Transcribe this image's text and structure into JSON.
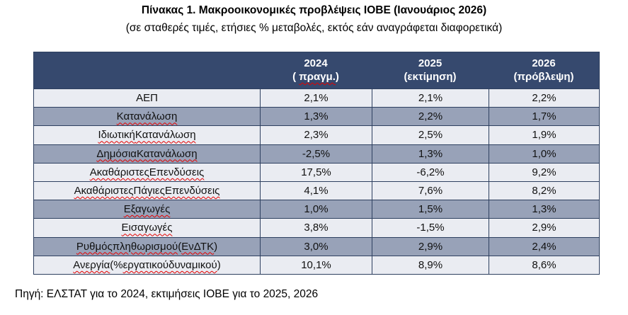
{
  "title": "Πίνακας 1. Μακροοικονομικές προβλέψεις ΙΟΒΕ (Ιανουάριος 2026)",
  "subtitle": "(σε σταθερές τιμές, ετήσιες % μεταβολές, εκτός εάν αναγράφεται διαφορετικά)",
  "source": "Πηγή: ΕΛΣΤΑΤ για το 2024, εκτιμήσεις ΙΟΒΕ για το 2025, 2026",
  "colors": {
    "header_bg": "#36496E",
    "row_light": "#EAECF2",
    "row_shaded": "#98A2B8",
    "border": "#2E4060",
    "spellcheck_underline": "#E50000",
    "header_text": "#FFFFFF"
  },
  "table": {
    "columns": [
      {
        "year": "2024",
        "sublabel": "( πραγμ.)",
        "sublabel_segments": [
          {
            "t": "( ",
            "sp": false
          },
          {
            "t": "πραγμ.",
            "sp": true
          },
          {
            "t": ")",
            "sp": false
          }
        ]
      },
      {
        "year": "2025",
        "sublabel": "(εκτίμηση)",
        "sublabel_segments": [
          {
            "t": "(εκτίμηση)",
            "sp": false
          }
        ]
      },
      {
        "year": "2026",
        "sublabel": "(πρόβλεψη)",
        "sublabel_segments": [
          {
            "t": "(πρόβλεψη)",
            "sp": false
          }
        ]
      }
    ],
    "rows": [
      {
        "label": "ΑΕΠ",
        "shaded": false,
        "values": [
          "2,1%",
          "2,1%",
          "2,2%"
        ],
        "label_segments": [
          {
            "t": "ΑΕΠ",
            "sp": false
          }
        ]
      },
      {
        "label": "Κατανάλωση",
        "shaded": true,
        "values": [
          "1,3%",
          "2,2%",
          "1,7%"
        ],
        "label_segments": [
          {
            "t": "Κατανάλωση",
            "sp": true
          }
        ]
      },
      {
        "label": "Ιδιωτική Κατανάλωση",
        "shaded": false,
        "values": [
          "2,3%",
          "2,5%",
          "1,9%"
        ],
        "label_segments": [
          {
            "t": "Ιδιωτική",
            "sp": true
          },
          {
            "t": " ",
            "sp": false
          },
          {
            "t": "Κατανάλωση",
            "sp": true
          }
        ]
      },
      {
        "label": "Δημόσια Κατανάλωση",
        "shaded": true,
        "values": [
          "-2,5%",
          "1,3%",
          "1,0%"
        ],
        "label_segments": [
          {
            "t": "Δημόσια",
            "sp": true
          },
          {
            "t": " ",
            "sp": false
          },
          {
            "t": "Κατανάλωση",
            "sp": true
          }
        ]
      },
      {
        "label": "Ακαθάριστες Επενδύσεις",
        "shaded": false,
        "values": [
          "17,5%",
          "-6,2%",
          "9,2%"
        ],
        "label_segments": [
          {
            "t": "Ακαθάριστες",
            "sp": true
          },
          {
            "t": " ",
            "sp": false
          },
          {
            "t": "Επενδύσεις",
            "sp": true
          }
        ]
      },
      {
        "label": "Ακαθάριστες Πάγιες Επενδύσεις",
        "shaded": false,
        "values": [
          "4,1%",
          "7,6%",
          "8,2%"
        ],
        "label_segments": [
          {
            "t": "Ακαθάριστες",
            "sp": true
          },
          {
            "t": " ",
            "sp": false
          },
          {
            "t": "Πάγιες",
            "sp": true
          },
          {
            "t": " ",
            "sp": false
          },
          {
            "t": "Επενδύσεις",
            "sp": true
          }
        ]
      },
      {
        "label": "Εξαγωγές",
        "shaded": true,
        "values": [
          "1,0%",
          "1,5%",
          "1,3%"
        ],
        "label_segments": [
          {
            "t": "Εξαγωγές",
            "sp": true
          }
        ]
      },
      {
        "label": "Εισαγωγές",
        "shaded": false,
        "values": [
          "3,8%",
          "-1,5%",
          "2,9%"
        ],
        "label_segments": [
          {
            "t": "Εισαγωγές",
            "sp": true
          }
        ]
      },
      {
        "label": "Ρυθμός πληθωρισμού (ΕνΔΤΚ)",
        "shaded": true,
        "values": [
          "3,0%",
          "2,9%",
          "2,4%"
        ],
        "label_segments": [
          {
            "t": "Ρυθμός",
            "sp": true
          },
          {
            "t": " ",
            "sp": false
          },
          {
            "t": "πληθωρισμού",
            "sp": true
          },
          {
            "t": " (",
            "sp": false
          },
          {
            "t": "ΕνΔΤΚ",
            "sp": true
          },
          {
            "t": ")",
            "sp": false
          }
        ]
      },
      {
        "label": "Ανεργία (% εργατικού δυναμικού)",
        "shaded": false,
        "values": [
          "10,1%",
          "8,9%",
          "8,6%"
        ],
        "label_segments": [
          {
            "t": "Ανεργία",
            "sp": true
          },
          {
            "t": " (% ",
            "sp": false
          },
          {
            "t": "εργατικού",
            "sp": true
          },
          {
            "t": " ",
            "sp": false
          },
          {
            "t": "δυναμικού",
            "sp": true
          },
          {
            "t": ")",
            "sp": false
          }
        ]
      }
    ]
  }
}
